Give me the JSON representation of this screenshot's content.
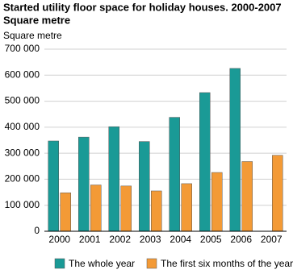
{
  "chart_data": {
    "type": "bar",
    "title": "Started utility floor space for holiday houses. 2000-2007",
    "subtitle": "Square metre",
    "y_label": "Square metre",
    "categories": [
      "2000",
      "2001",
      "2002",
      "2003",
      "2004",
      "2005",
      "2006",
      "2007"
    ],
    "series": [
      {
        "name": "The whole year",
        "color": "#1a9a96",
        "values": [
          347000,
          362000,
          402000,
          345000,
          438000,
          533000,
          626000,
          null
        ]
      },
      {
        "name": "The first six months of the year",
        "color": "#f39a36",
        "values": [
          148000,
          178000,
          174000,
          155000,
          183000,
          226000,
          268000,
          292000
        ]
      }
    ],
    "ylim": [
      0,
      700000
    ],
    "yticks": [
      0,
      {
        "value": 100000,
        "label": "100 000"
      },
      {
        "value": 200000,
        "label": "200 000"
      },
      {
        "value": 300000,
        "label": "300 000"
      },
      {
        "value": 400000,
        "label": "400 000"
      },
      {
        "value": 500000,
        "label": "500 000"
      },
      {
        "value": 600000,
        "label": "600 000"
      },
      {
        "value": 700000,
        "label": "700 000"
      }
    ],
    "grid": true
  }
}
